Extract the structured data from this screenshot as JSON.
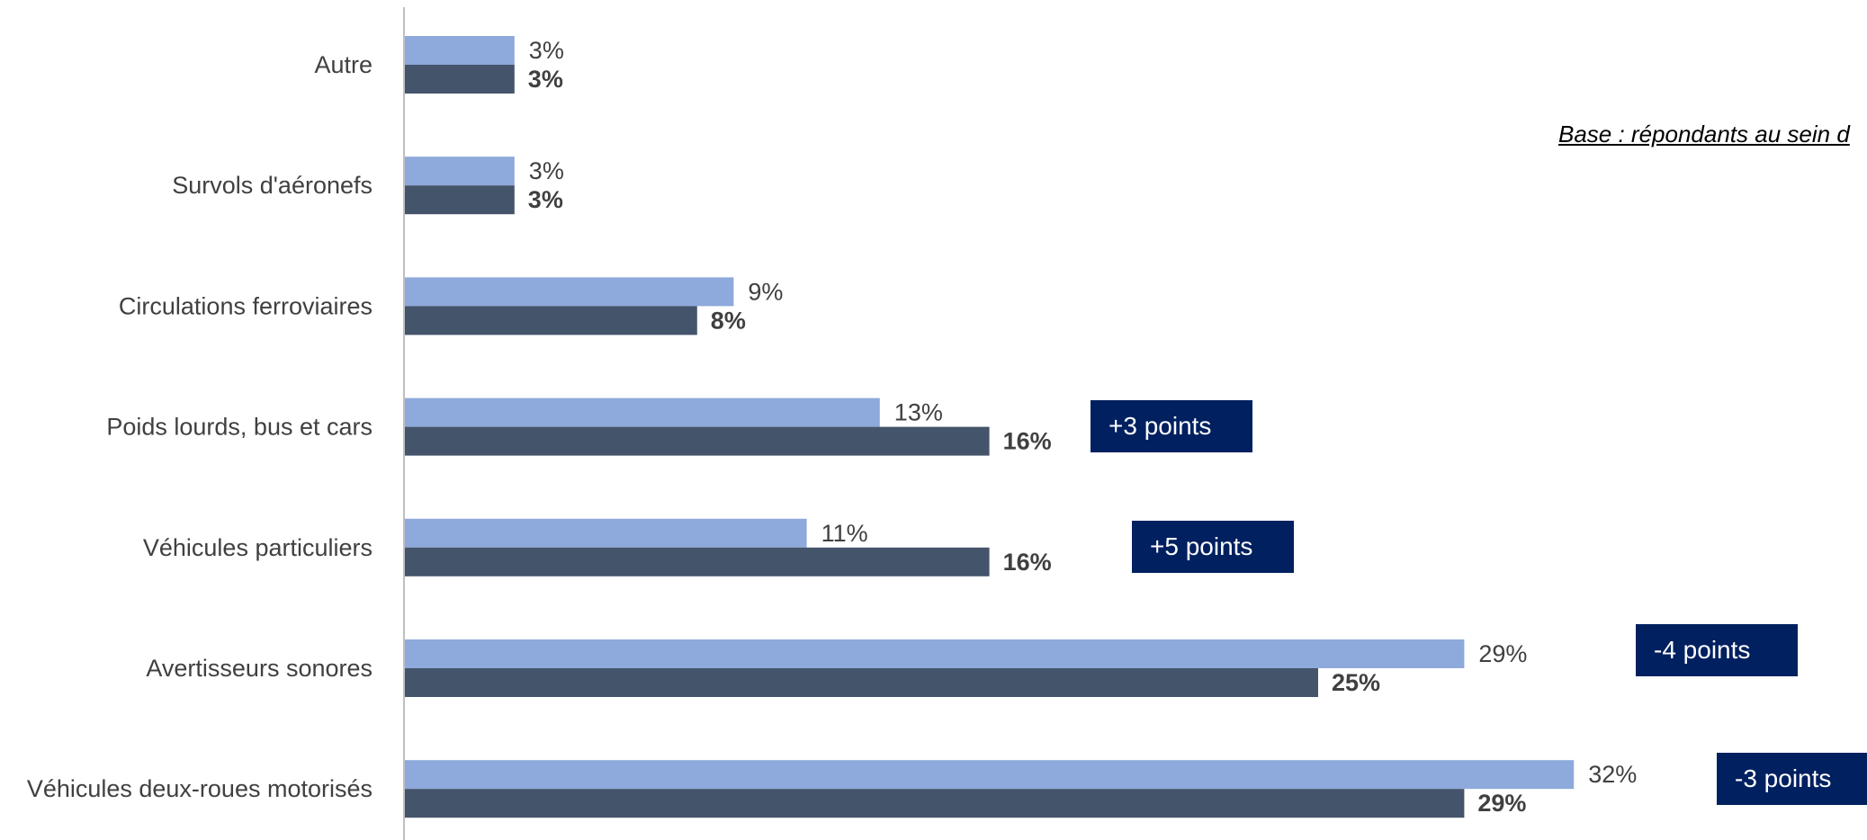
{
  "chart_data": {
    "type": "bar",
    "orientation": "horizontal",
    "categories": [
      "Autre",
      "Survols d'aéronefs",
      "Circulations ferroviaires",
      "Poids lourds, bus et cars",
      "Véhicules particuliers",
      "Avertisseurs sonores",
      "Véhicules deux-roues motorisés"
    ],
    "series": [
      {
        "color": "#8EA9DB",
        "values": [
          3,
          3,
          9,
          13,
          11,
          29,
          32
        ],
        "labels": [
          "3%",
          "3%",
          "9%",
          "13%",
          "11%",
          "29%",
          "32%"
        ]
      },
      {
        "color": "#44546A",
        "values": [
          3,
          3,
          8,
          16,
          16,
          25,
          29
        ],
        "labels": [
          "3%",
          "3%",
          "8%",
          "16%",
          "16%",
          "25%",
          "29%"
        ]
      }
    ],
    "xlim": [
      0,
      40
    ],
    "grid": false,
    "legend": "none",
    "annotations": [
      {
        "category": "Poids lourds, bus et cars",
        "text": "+3 points"
      },
      {
        "category": "Véhicules particuliers",
        "text": "+5 points"
      },
      {
        "category": "Avertisseurs sonores",
        "text": "-4 points"
      },
      {
        "category": "Véhicules deux-roues motorisés",
        "text": "-3 points"
      }
    ],
    "note": "Base : répondants au sein d"
  },
  "colors": {
    "axis": "#BFBFBF",
    "label_text": "#404040",
    "delta_box": "#002060"
  }
}
